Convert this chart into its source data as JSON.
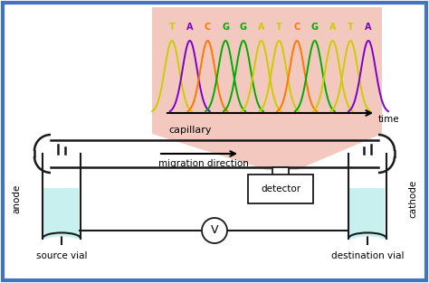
{
  "bg_color": "#ffffff",
  "border_color": "#4472c4",
  "dna_labels": [
    "T",
    "A",
    "C",
    "G",
    "G",
    "A",
    "T",
    "C",
    "G",
    "A",
    "T",
    "A"
  ],
  "dna_colors": [
    "#cccc00",
    "#7b00cc",
    "#ff7700",
    "#00aa00",
    "#00aa00",
    "#cccc00",
    "#cccc00",
    "#ff7700",
    "#00aa00",
    "#cccc00",
    "#cccc00",
    "#7b00cc"
  ],
  "peak_colors": [
    "#cccc00",
    "#7b00cc",
    "#ff7700",
    "#00aa00",
    "#00aa00",
    "#cccc00",
    "#cccc00",
    "#ff7700",
    "#00aa00",
    "#cccc00",
    "#cccc00",
    "#7b00cc"
  ],
  "pink_bg": "#f2c4b8",
  "capillary_label": "capillary",
  "migration_label": "migration direction",
  "detector_label": "detector",
  "anode_label": "anode",
  "cathode_label": "cathode",
  "source_label": "source vial",
  "dest_label": "destination vial",
  "time_label": "time",
  "voltage_label": "V",
  "vial_fill": "#c8f0ee",
  "line_color": "#1a1a1a"
}
